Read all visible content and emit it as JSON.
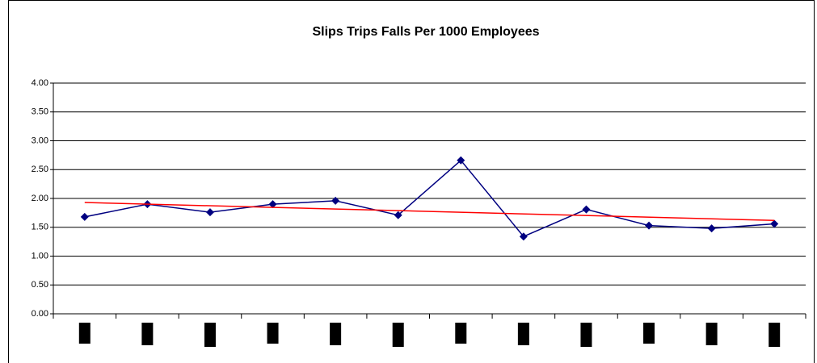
{
  "chart_data": {
    "type": "line",
    "title": "Slips Trips Falls Per 1000 Employees",
    "categories": [
      null,
      null,
      null,
      null,
      null,
      null,
      null,
      null,
      null,
      null,
      null,
      null
    ],
    "series": [
      {
        "name": null,
        "color": "#000080",
        "values": [
          1.68,
          1.9,
          1.76,
          1.9,
          1.96,
          1.71,
          2.66,
          1.34,
          1.81,
          1.53,
          1.48,
          1.56
        ]
      }
    ],
    "trendline": {
      "kind": "linear",
      "color": "#ff0000"
    },
    "ylim": [
      0,
      4
    ],
    "yticks": [
      {
        "value": 0,
        "label": "0.00"
      },
      {
        "value": 0.5,
        "label": "0.50"
      },
      {
        "value": 1,
        "label": "1.00"
      },
      {
        "value": 1.5,
        "label": "1.50"
      },
      {
        "value": 2,
        "label": "2.00"
      },
      {
        "value": 2.5,
        "label": "2.50"
      },
      {
        "value": 3,
        "label": "3.00"
      },
      {
        "value": 3.5,
        "label": "3.50"
      },
      {
        "value": 4,
        "label": "4.00"
      }
    ],
    "grid": true
  }
}
